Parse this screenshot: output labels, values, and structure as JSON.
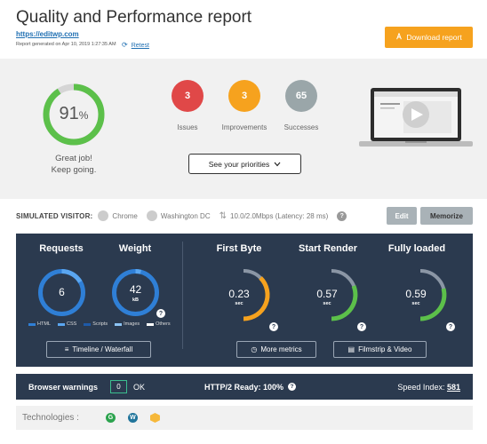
{
  "header": {
    "title": "Quality and Performance report",
    "site": "https://editwp.com",
    "generated": "Report generated on Apr 10, 2019 1:27:35 AM",
    "retest_label": "Retest",
    "download_label": "Download report"
  },
  "summary": {
    "score": "91",
    "score_unit": "%",
    "score_fraction": 0.91,
    "message_line1": "Great job!",
    "message_line2": "Keep going.",
    "issues": {
      "count": "3",
      "label": "Issues",
      "color": "#e04848"
    },
    "improvements": {
      "count": "3",
      "label": "Improvements",
      "color": "#f6a21e"
    },
    "successes": {
      "count": "65",
      "label": "Successes",
      "color": "#9aa6a9"
    },
    "priorities_label": "See your priorities"
  },
  "visitor": {
    "label": "SIMULATED VISITOR:",
    "browser": "Chrome",
    "location": "Washington DC",
    "connection": "10.0/2.0Mbps (Latency: 28 ms)",
    "edit_label": "Edit",
    "memorize_label": "Memorize"
  },
  "metrics": {
    "requests": {
      "title": "Requests",
      "value": "6"
    },
    "weight": {
      "title": "Weight",
      "value": "42",
      "unit": "kB"
    },
    "legend": [
      "HTML",
      "CSS",
      "Scripts",
      "Images",
      "Others"
    ],
    "first_byte": {
      "title": "First Byte",
      "value": "0.23",
      "unit": "sec",
      "color": "#f6a21e"
    },
    "start_render": {
      "title": "Start Render",
      "value": "0.57",
      "unit": "sec",
      "color": "#5cc04a"
    },
    "fully_loaded": {
      "title": "Fully loaded",
      "value": "0.59",
      "unit": "sec",
      "color": "#5cc04a"
    },
    "timeline_label": "Timeline / Waterfall",
    "more_metrics_label": "More metrics",
    "filmstrip_label": "Filmstrip & Video"
  },
  "warnings": {
    "label": "Browser warnings",
    "count": "0",
    "status": "OK",
    "http2": "HTTP/2 Ready: 100%",
    "speed_label": "Speed Index:",
    "speed_value": "581"
  },
  "technologies": {
    "label": "Technologies :"
  },
  "colors": {
    "accent": "#f6a21e",
    "panel": "#2b3a4f",
    "success": "#5cc04a",
    "link": "#1f6fb2"
  }
}
